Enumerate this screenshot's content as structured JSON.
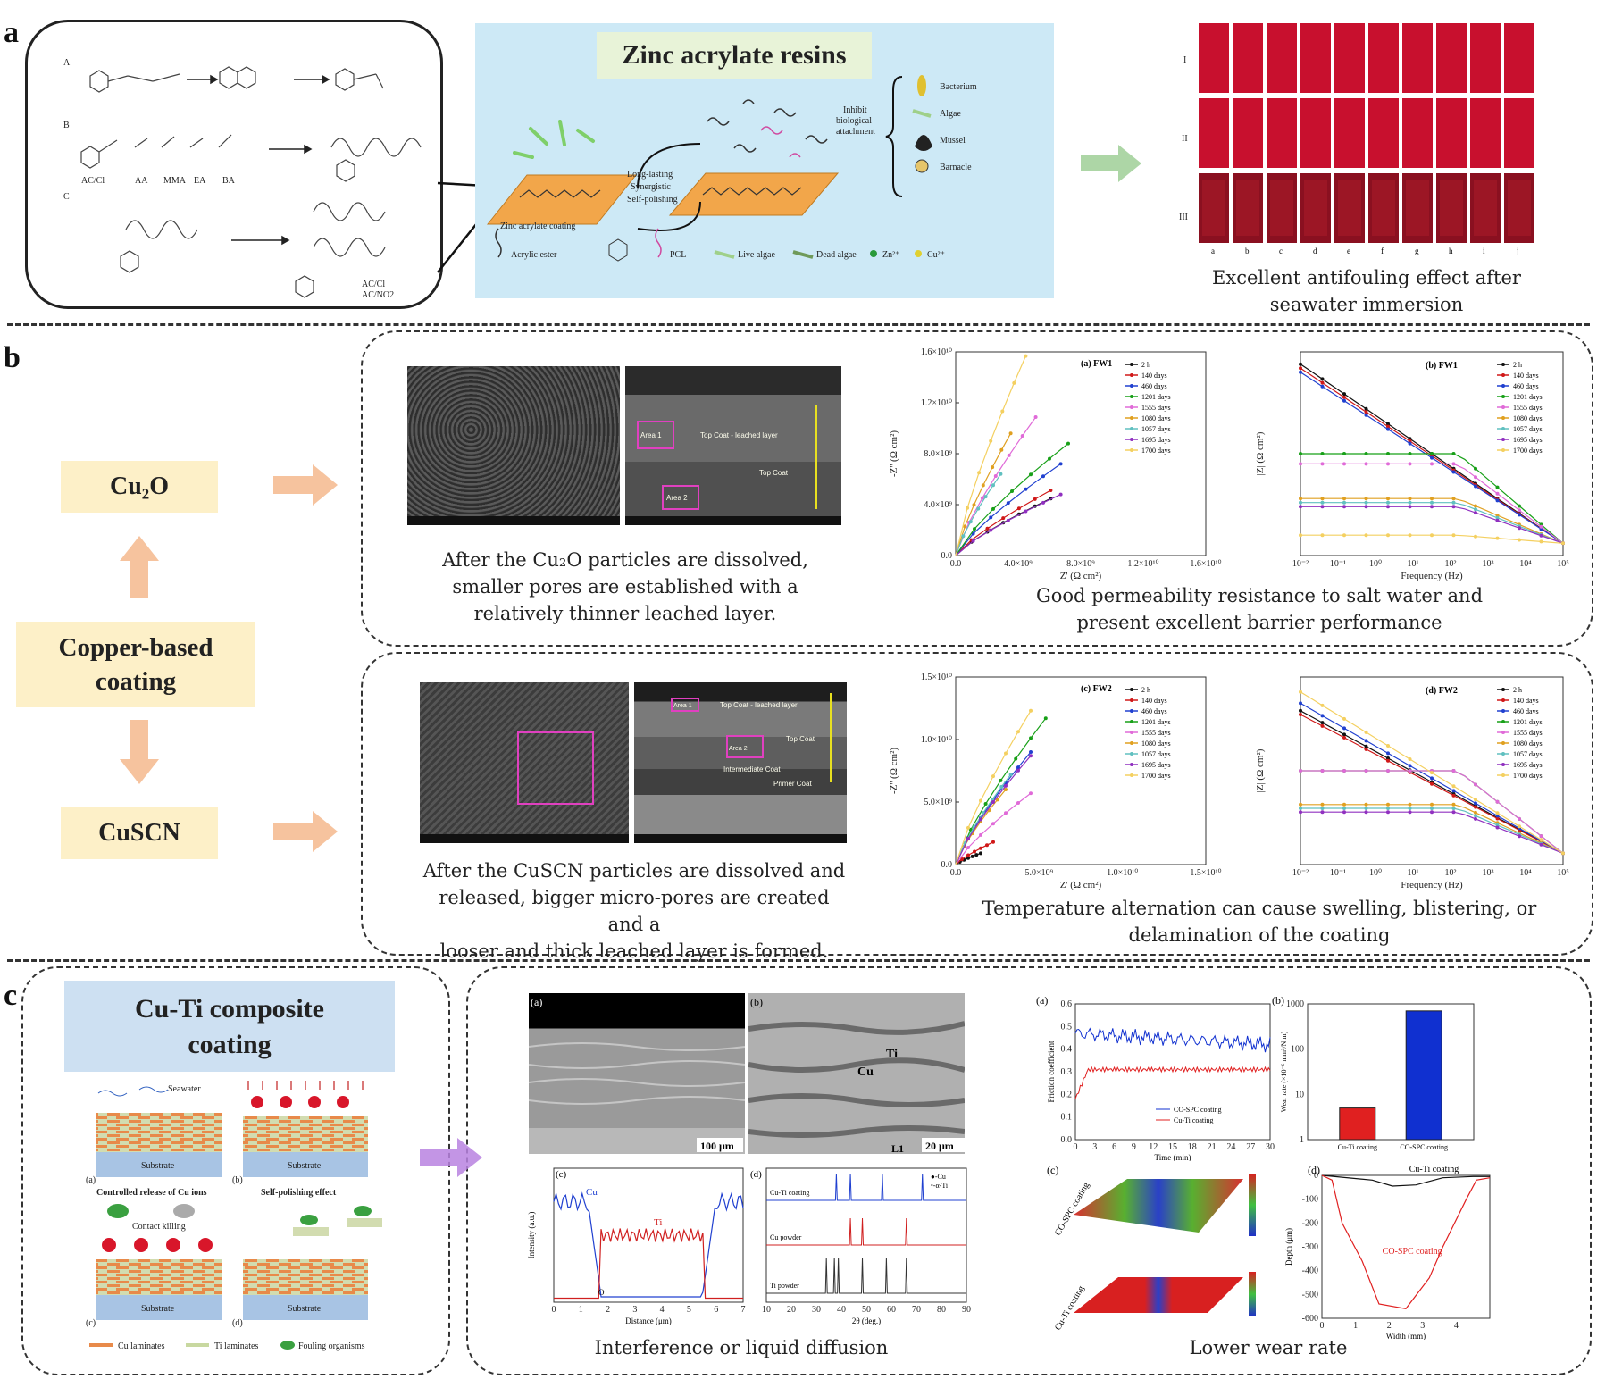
{
  "panels": {
    "a": "a",
    "b": "b",
    "c": "c"
  },
  "a": {
    "title": "Zinc acrylate resins",
    "caption_line1": "Excellent antifouling effect after",
    "caption_line2": "seawater immersion",
    "scheme_labels": {
      "A": "A",
      "B": "B",
      "C": "C"
    },
    "scheme_small": [
      "AC/Cl",
      "AC/NO2",
      "AA",
      "MMA",
      "EA",
      "BA",
      "AC/Cl",
      "AC/NO2"
    ],
    "cycle_text": [
      "Long-lasting",
      "Synergistic",
      "Self-polishing"
    ],
    "coating_label": "Zinc acrylate coating",
    "inhibit_text": [
      "Inhibit",
      "biological",
      "attachment"
    ],
    "organisms": [
      "Bacterium",
      "Algae",
      "Mussel",
      "Barnacle"
    ],
    "legend": [
      "Acrylic ester",
      "PCL",
      "Live algae",
      "Dead algae",
      "Zn²⁺",
      "Cu²⁺"
    ],
    "row_labels": [
      "I",
      "II",
      "III"
    ],
    "col_labels": [
      "a",
      "b",
      "c",
      "d",
      "e",
      "f",
      "g",
      "h",
      "i",
      "j"
    ]
  },
  "b": {
    "cu2o": "Cu₂O",
    "copper_line1": "Copper-based",
    "copper_line2": "coating",
    "cuscn": "CuSCN",
    "top_caption": [
      "After the Cu₂O particles are dissolved,",
      "smaller pores are established with a",
      "relatively thinner leached layer."
    ],
    "top_right_caption": [
      "Good permeability resistance to salt water and",
      "present excellent barrier performance"
    ],
    "bottom_caption": [
      "After the CuSCN particles are dissolved and",
      "released, bigger micro-pores are created and a",
      "looser and thick leached layer is formed."
    ],
    "bottom_right_caption": [
      "Temperature alternation can cause swelling, blistering, or",
      "delamination of the coating"
    ],
    "sem_top_b_labels": [
      "Area 1",
      "Top Coat - leached layer",
      "Top Coat",
      "Area 2"
    ],
    "sem_bot_b_labels": [
      "Area 1",
      "Top Coat - leached layer",
      "Top Coat",
      "Area 2",
      "Intermediate Coat",
      "Primer Coat"
    ],
    "plot_a_title": "(a) FW1",
    "plot_b_title": "(b) FW1",
    "plot_c_title": "(c) FW2",
    "plot_d_title": "(d) FW2",
    "nyq_ylabel": "-Z'' (Ω cm²)",
    "nyq_xlabel": "Z' (Ω cm²)",
    "bode_ylabel": "|Z| (Ω cm²)",
    "bode_xlabel": "Frequency (Hz)",
    "legend_fw1": [
      "2 h",
      "140 days",
      "460 days",
      "1201 days",
      "1555 days",
      "1080 days",
      "1057 days",
      "1695 days",
      "1700 days"
    ],
    "legend_fw2": [
      "2 h",
      "140 days",
      "460 days",
      "1201 days",
      "1555 days",
      "1080 days",
      "1057 days",
      "1695 days",
      "1700 days"
    ],
    "nyq_top_yticks": [
      "1.6×10¹⁰",
      "1.2×10¹⁰",
      "8.0×10⁹",
      "4.0×10⁹",
      "0.0"
    ],
    "nyq_top_xticks": [
      "0.0",
      "4.0×10⁹",
      "8.0×10⁹",
      "1.2×10¹⁰",
      "1.6×10¹⁰"
    ],
    "nyq_bot_yticks": [
      "1.5×10¹⁰",
      "1.0×10¹⁰",
      "5.0×10⁹",
      "0.0"
    ],
    "nyq_bot_xticks": [
      "0.0",
      "5.0×10⁹",
      "1.0×10¹⁰",
      "1.5×10¹⁰"
    ],
    "bode_xticks": [
      "10⁻²",
      "10⁻¹",
      "10⁰",
      "10¹",
      "10²",
      "10³",
      "10⁴",
      "10⁵"
    ]
  },
  "c": {
    "title_line1": "Cu-Ti composite",
    "title_line2": "coating",
    "seawater": "Seawater",
    "substrate": "Substrate",
    "release_label": "Controlled release of Cu ions",
    "polish_label": "Self-polishing effect",
    "contact_killing": "Contact killing",
    "sub_letters": [
      "(a)",
      "(b)",
      "(c)",
      "(d)"
    ],
    "legend": [
      "Cu laminates",
      "Ti laminates",
      "Fouling organisms"
    ],
    "mid_caption": "Interference or liquid diffusion",
    "right_caption": "Lower wear rate",
    "sem_a_scale": "100 μm",
    "sem_b_scale": "20 μm",
    "sem_b_labels": [
      "Ti",
      "Cu",
      "L1"
    ],
    "eds_labels": [
      "Cu",
      "Ti",
      "O"
    ],
    "eds_xlabel": "Distance (μm)",
    "eds_ylabel": "Intensity (a.u.)",
    "xrd_series": [
      "Cu-Ti coating",
      "Cu powder",
      "Ti powder"
    ],
    "xrd_legend": [
      "●-Cu",
      "•-α-Ti"
    ],
    "xrd_xlabel": "2θ (deg.)",
    "friction_ylabel": "Friction coefficient",
    "friction_xlabel": "Time (min)",
    "friction_legend": [
      "CO-SPC coating",
      "Cu-Ti coating"
    ],
    "wear_ylabel": "Wear rate (×10⁻⁶ mm³/N m)",
    "wear_categories": [
      "Cu-Ti coating",
      "CO-SPC coating"
    ],
    "profile_ylabel": "Depth (μm)",
    "profile_xlabel": "Width (mm)",
    "profile_labels": [
      "Cu-Ti coating",
      "CO-SPC coating"
    ],
    "surf_labels": [
      "CO-SPC coating",
      "Cu-Ti coating"
    ],
    "panel_tags": [
      "(a)",
      "(b)",
      "(c)",
      "(d)"
    ]
  },
  "chart_data": [
    {
      "type": "bar",
      "title": "",
      "categories": [
        "Cu-Ti coating",
        "CO-SPC coating"
      ],
      "values": [
        5,
        700
      ],
      "ylabel": "Wear rate (×10⁻⁶ mm³/N m)",
      "yscale": "log",
      "ylim": [
        1,
        1000
      ],
      "colors": [
        "#e02020",
        "#1030d0"
      ]
    }
  ],
  "colors": {
    "accent_yellow": "#fdf0c8",
    "light_blue": "#cde9f6",
    "arrow_orange": "#f4b486",
    "arrow_green": "#9fcf96",
    "arrow_purple": "#b883e0"
  }
}
